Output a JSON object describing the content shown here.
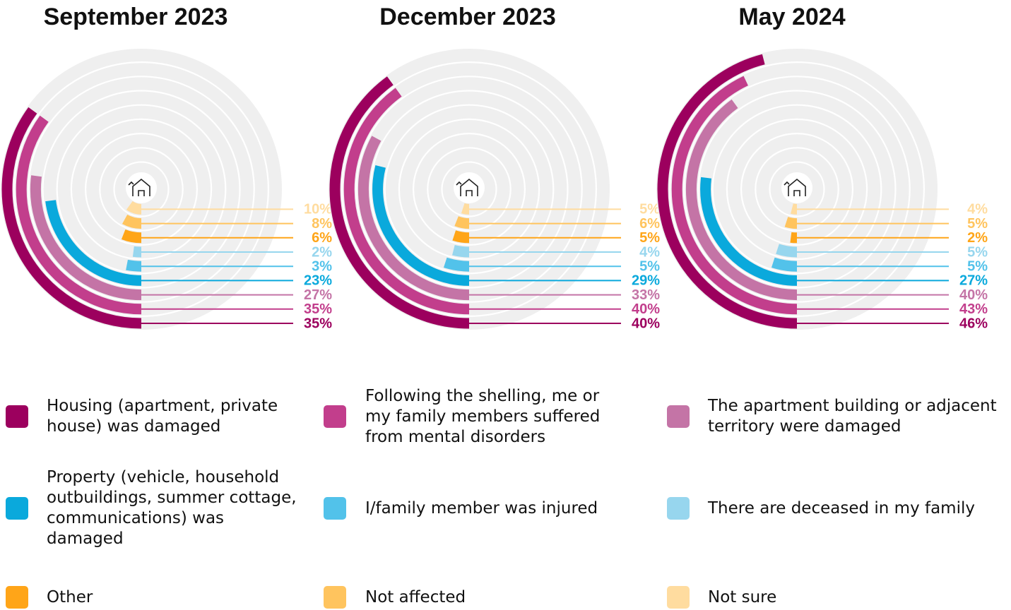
{
  "legend": {
    "items": [
      {
        "name": "Housing (apartment, private house) was damaged",
        "color": "#9c005e"
      },
      {
        "name": "Following the shelling, me or my family members suffered from mental disorders",
        "color": "#c23e8c"
      },
      {
        "name": "The apartment building or adjacent territory were damaged",
        "color": "#c474a6"
      },
      {
        "name": "Property (vehicle, household outbuildings, summer cottage, communications) was damaged",
        "color": "#0aa9dc"
      },
      {
        "name": "I/family member was injured",
        "color": "#52c2ea"
      },
      {
        "name": "There are deceased in my family",
        "color": "#97d6ee"
      },
      {
        "name": "Other",
        "color": "#ffa518"
      },
      {
        "name": "Not affected",
        "color": "#ffc45e"
      },
      {
        "name": "Not sure",
        "color": "#ffdc9f"
      }
    ]
  },
  "chart_data": [
    {
      "type": "radial_bar",
      "title": "September 2023",
      "ylim": [
        0,
        100
      ],
      "values": [
        35,
        35,
        27,
        23,
        3,
        2,
        6,
        8,
        10
      ],
      "value_labels": [
        "35%",
        "35%",
        "27%",
        "23%",
        "3%",
        "2%",
        "6%",
        "8%",
        "10%"
      ]
    },
    {
      "type": "radial_bar",
      "title": "December 2023",
      "ylim": [
        0,
        100
      ],
      "values": [
        40,
        40,
        33,
        29,
        5,
        4,
        5,
        6,
        5
      ],
      "value_labels": [
        "40%",
        "40%",
        "33%",
        "29%",
        "5%",
        "4%",
        "5%",
        "6%",
        "5%"
      ]
    },
    {
      "type": "radial_bar",
      "title": "May 2024",
      "ylim": [
        0,
        100
      ],
      "values": [
        46,
        43,
        40,
        27,
        5,
        5,
        2,
        5,
        4
      ],
      "value_labels": [
        "46%",
        "43%",
        "40%",
        "27%",
        "5%",
        "5%",
        "2%",
        "5%",
        "4%"
      ]
    }
  ]
}
